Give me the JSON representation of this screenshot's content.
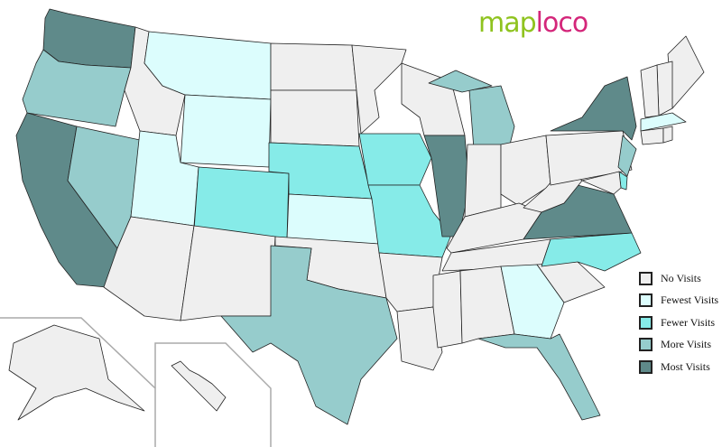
{
  "logo": {
    "part1": "map",
    "part2": "loco"
  },
  "colors": {
    "none": "#efefef",
    "fewest": "#dcfdfd",
    "fewer": "#86ebe8",
    "more": "#96cccc",
    "most": "#5f8a8a"
  },
  "legend": [
    {
      "key": "none",
      "label": "No Visits"
    },
    {
      "key": "fewest",
      "label": "Fewest Visits"
    },
    {
      "key": "fewer",
      "label": "Fewer Visits"
    },
    {
      "key": "more",
      "label": "More Visits"
    },
    {
      "key": "most",
      "label": "Most Visits"
    }
  ],
  "state_visits": {
    "WA": "most",
    "OR": "more",
    "CA": "most",
    "NV": "more",
    "ID": "none",
    "MT": "fewest",
    "WY": "fewest",
    "UT": "fewest",
    "CO": "fewer",
    "AZ": "none",
    "NM": "none",
    "ND": "none",
    "SD": "none",
    "NE": "fewer",
    "KS": "fewest",
    "OK": "none",
    "TX": "more",
    "MN": "none",
    "IA": "fewer",
    "MO": "fewer",
    "AR": "none",
    "LA": "none",
    "WI": "none",
    "IL": "most",
    "MI": "more",
    "IN": "none",
    "OH": "none",
    "KY": "none",
    "TN": "none",
    "MS": "none",
    "AL": "none",
    "GA": "fewest",
    "FL": "more",
    "SC": "none",
    "NC": "fewer",
    "VA": "most",
    "WV": "none",
    "PA": "none",
    "NY": "most",
    "NJ": "more",
    "DE": "fewer",
    "MD": "none",
    "ME": "none",
    "NH": "none",
    "VT": "none",
    "MA": "fewest",
    "CT": "none",
    "RI": "none",
    "AK": "none",
    "HI": "none"
  }
}
